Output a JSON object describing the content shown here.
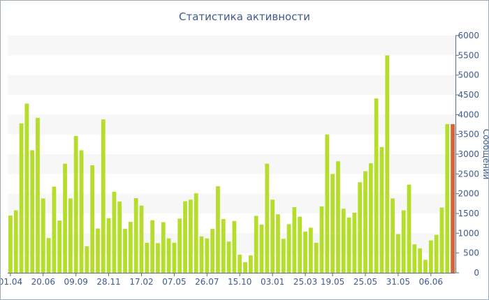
{
  "chart_data": {
    "type": "bar",
    "title": "Статистика активности",
    "ylabel": "Сообщений",
    "ylim": [
      0,
      6000
    ],
    "y_ticks": [
      "0",
      "500",
      "1000",
      "1500",
      "2000",
      "2500",
      "3000",
      "3500",
      "4000",
      "4500",
      "5000",
      "5500",
      "6000"
    ],
    "y_axis_side": "right",
    "grid": "alternating horizontal bands",
    "x_tick_labels": [
      {
        "label": "01.04",
        "index": 0
      },
      {
        "label": "20.06",
        "index": 6
      },
      {
        "label": "09.09",
        "index": 12
      },
      {
        "label": "28.11",
        "index": 18
      },
      {
        "label": "17.02",
        "index": 24
      },
      {
        "label": "07.05",
        "index": 30
      },
      {
        "label": "26.07",
        "index": 36
      },
      {
        "label": "15.10",
        "index": 42
      },
      {
        "label": "03.01",
        "index": 48
      },
      {
        "label": "25.03",
        "index": 54
      },
      {
        "label": "19.05",
        "index": 59
      },
      {
        "label": "25.05",
        "index": 65
      },
      {
        "label": "31.05",
        "index": 71
      },
      {
        "label": "06.06",
        "index": 77
      }
    ],
    "values": [
      1450,
      1580,
      3780,
      4280,
      3100,
      3920,
      1880,
      880,
      2180,
      1320,
      2760,
      1880,
      3460,
      3100,
      670,
      2720,
      1120,
      3880,
      1380,
      2050,
      1800,
      1110,
      1290,
      1890,
      1700,
      760,
      1330,
      750,
      1280,
      870,
      760,
      1370,
      1810,
      1850,
      2010,
      920,
      870,
      1110,
      2190,
      1360,
      790,
      1310,
      460,
      270,
      440,
      1440,
      1220,
      2760,
      1850,
      1480,
      860,
      1230,
      1660,
      1420,
      1040,
      1140,
      760,
      1680,
      3500,
      2500,
      2820,
      1620,
      1400,
      1520,
      2290,
      2570,
      2770,
      4410,
      3180,
      5500,
      1880,
      980,
      1580,
      2230,
      720,
      620,
      330,
      820,
      960,
      1650,
      3760,
      3760
    ],
    "highlight_last": true,
    "colors": {
      "bar": "#b5de2c",
      "last_bar": "#d7643a",
      "text": "#3d5a8f",
      "band": "#f7f7f7"
    }
  }
}
